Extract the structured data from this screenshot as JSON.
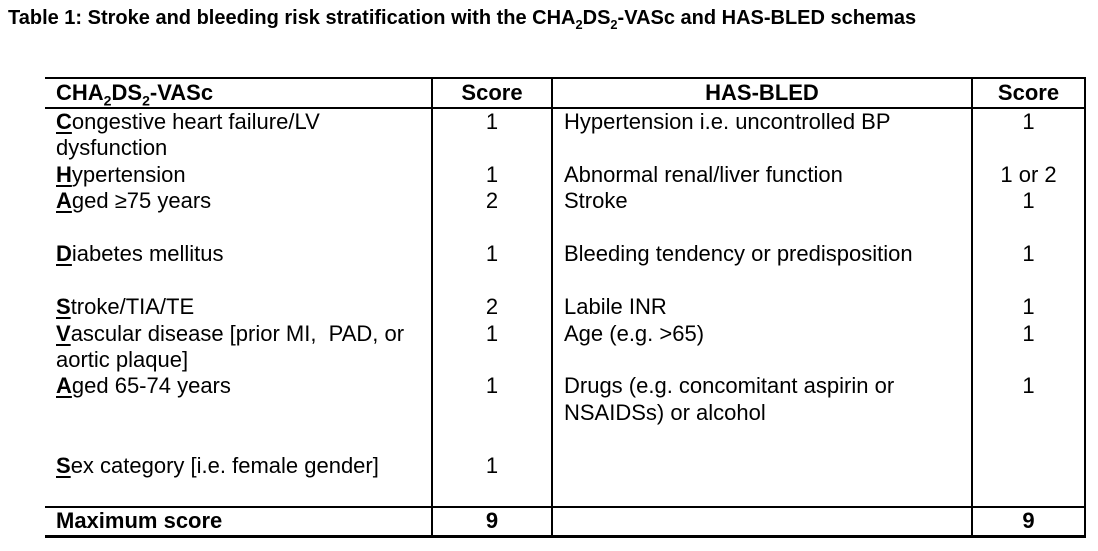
{
  "caption": {
    "p1": "Table 1: Stroke and bleeding risk stratification with the CHA",
    "sub1": "2",
    "p2": "DS",
    "sub2": "2",
    "p3": "-VASc and HAS-BLED schemas"
  },
  "table": {
    "header": {
      "col1": {
        "p1": "CHA",
        "sub1": "2",
        "p2": "DS",
        "sub2": "2",
        "p3": "-VASc"
      },
      "col2": "Score",
      "col3": "HAS-BLED",
      "col4": "Score"
    },
    "rows": [
      {
        "c1": "Congestive heart failure/LV",
        "u": true,
        "c2": "1",
        "c3": "Hypertension i.e. uncontrolled BP",
        "c4": "1"
      },
      {
        "c1": "dysfunction",
        "u": false,
        "c2": "",
        "c3": "",
        "c4": ""
      },
      {
        "c1": "Hypertension",
        "u": true,
        "c2": "1",
        "c3": "Abnormal renal/liver function",
        "c4": "1 or 2"
      },
      {
        "c1": "Aged ≥75 years",
        "u": true,
        "c2": "2",
        "c3": "Stroke",
        "c4": "1"
      },
      {
        "c1": "",
        "u": false,
        "c2": "",
        "c3": "",
        "c4": ""
      },
      {
        "c1": "Diabetes mellitus",
        "u": true,
        "c2": "1",
        "c3": "Bleeding tendency or predisposition",
        "c4": "1"
      },
      {
        "c1": "",
        "u": false,
        "c2": "",
        "c3": "",
        "c4": ""
      },
      {
        "c1": "Stroke/TIA/TE",
        "u": true,
        "c2": "2",
        "c3": "Labile INR",
        "c4": "1"
      },
      {
        "c1": "Vascular disease [prior MI,  PAD, or",
        "u": true,
        "c2": "1",
        "c3": "Age (e.g. >65)",
        "c4": "1"
      },
      {
        "c1": "aortic plaque]",
        "u": false,
        "c2": "",
        "c3": "",
        "c4": ""
      },
      {
        "c1": "Aged 65-74 years",
        "u": true,
        "c2": "1",
        "c3": "Drugs (e.g. concomitant aspirin or",
        "c4": "1"
      },
      {
        "c1": "",
        "u": false,
        "c2": "",
        "c3": "NSAIDSs) or alcohol",
        "c4": ""
      },
      {
        "c1": "",
        "u": false,
        "c2": "",
        "c3": "",
        "c4": ""
      },
      {
        "c1": "Sex category [i.e. female gender]",
        "u": true,
        "c2": "1",
        "c3": "",
        "c4": ""
      },
      {
        "c1": "",
        "u": false,
        "c2": "",
        "c3": "",
        "c4": ""
      }
    ],
    "footer": {
      "label": "Maximum score",
      "score1": "9",
      "score2": "9"
    }
  }
}
